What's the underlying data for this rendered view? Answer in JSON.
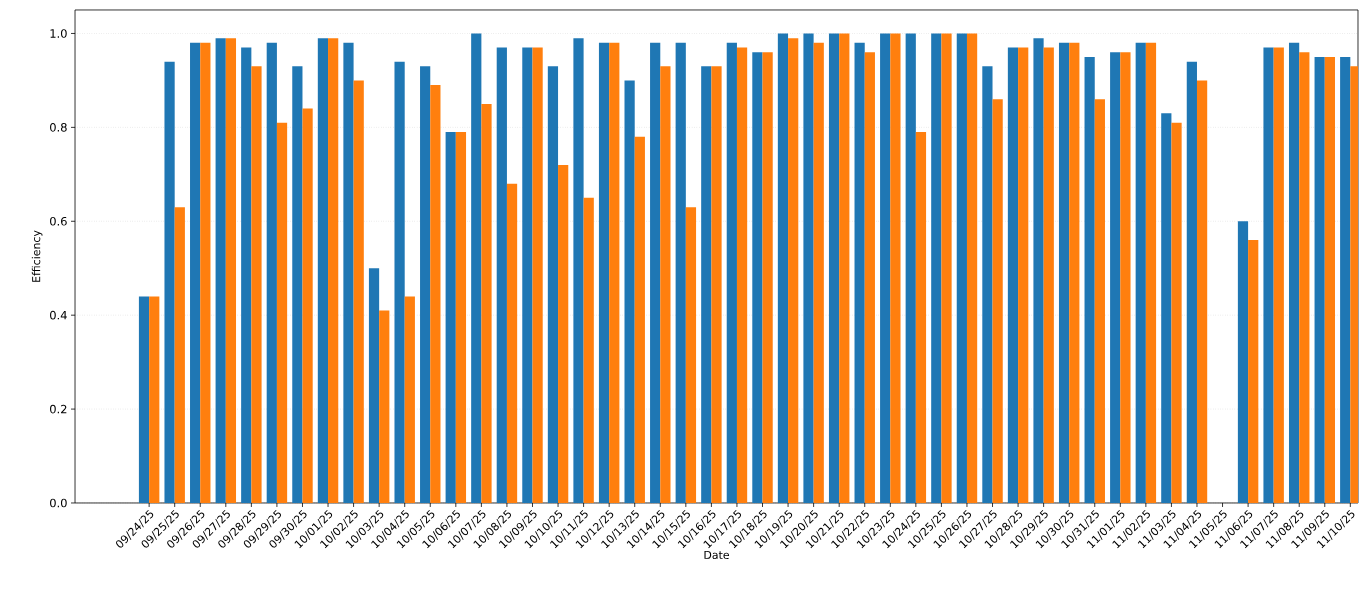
{
  "chart_data": {
    "type": "bar",
    "xlabel": "Date",
    "ylabel": "Efficiency",
    "categories": [
      "09/24/25",
      "09/25/25",
      "09/26/25",
      "09/27/25",
      "09/28/25",
      "09/29/25",
      "09/30/25",
      "10/01/25",
      "10/02/25",
      "10/03/25",
      "10/04/25",
      "10/05/25",
      "10/06/25",
      "10/07/25",
      "10/08/25",
      "10/09/25",
      "10/10/25",
      "10/11/25",
      "10/12/25",
      "10/13/25",
      "10/14/25",
      "10/15/25",
      "10/16/25",
      "10/17/25",
      "10/18/25",
      "10/19/25",
      "10/20/25",
      "10/21/25",
      "10/22/25",
      "10/23/25",
      "10/24/25",
      "10/25/25",
      "10/26/25",
      "10/27/25",
      "10/28/25",
      "10/29/25",
      "10/30/25",
      "10/31/25",
      "11/01/25",
      "11/02/25",
      "11/03/25",
      "11/04/25",
      "11/05/25",
      "11/06/25",
      "11/07/25",
      "11/08/25",
      "11/09/25",
      "11/10/25"
    ],
    "series": [
      {
        "color": "#1f77b4",
        "values": [
          0.44,
          0.94,
          0.98,
          0.99,
          0.97,
          0.98,
          0.93,
          0.99,
          0.98,
          0.5,
          0.94,
          0.93,
          0.79,
          1.0,
          0.97,
          0.97,
          0.93,
          0.99,
          0.98,
          0.9,
          0.98,
          0.98,
          0.93,
          0.98,
          0.96,
          1.0,
          1.0,
          1.0,
          0.98,
          1.0,
          1.0,
          1.0,
          1.0,
          0.93,
          0.97,
          0.99,
          0.98,
          0.95,
          0.96,
          0.98,
          0.83,
          0.94,
          null,
          0.6,
          0.97,
          0.98,
          0.95,
          0.95
        ]
      },
      {
        "color": "#ff7f0e",
        "values": [
          0.44,
          0.63,
          0.98,
          0.99,
          0.93,
          0.81,
          0.84,
          0.99,
          0.9,
          0.41,
          0.44,
          0.89,
          0.79,
          0.85,
          0.68,
          0.97,
          0.72,
          0.65,
          0.98,
          0.78,
          0.93,
          0.63,
          0.93,
          0.97,
          0.96,
          0.99,
          0.98,
          1.0,
          0.96,
          1.0,
          0.79,
          1.0,
          1.0,
          0.86,
          0.97,
          0.97,
          0.98,
          0.86,
          0.96,
          0.98,
          0.81,
          0.9,
          null,
          0.56,
          0.97,
          0.96,
          0.95,
          0.93
        ]
      }
    ],
    "ylim": [
      0,
      1.05
    ],
    "yticks": [
      {
        "value": 0,
        "label": "0.0"
      },
      0.2,
      0.4,
      0.6,
      0.8,
      {
        "value": 1,
        "label": "1.0"
      }
    ],
    "grid": "y"
  }
}
